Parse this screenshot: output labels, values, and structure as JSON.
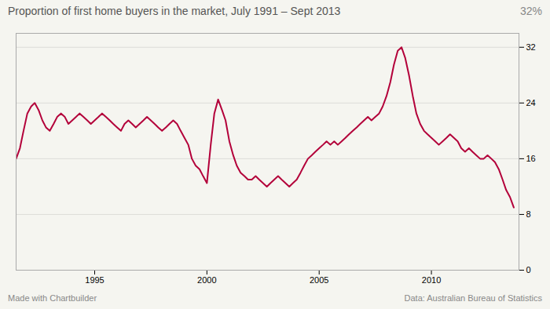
{
  "chart_data": {
    "type": "line",
    "title": "Proportion of first home buyers in the market, July 1991 – Sept 2013",
    "annotation": "32%",
    "footer": [
      "Made with Chartbuilder",
      "Data: Australian Bureau of Statistics"
    ],
    "color": "#B3003A",
    "grid": true,
    "xlim": [
      1991.5,
      2013.9
    ],
    "xticks": [
      1995,
      2000,
      2005,
      2010
    ],
    "ylim": [
      0,
      34
    ],
    "yticks": [
      0,
      8,
      16,
      24,
      32
    ],
    "x": [
      1991.5,
      1991.67,
      1991.83,
      1992.0,
      1992.17,
      1992.33,
      1992.5,
      1992.67,
      1992.83,
      1993.0,
      1993.17,
      1993.33,
      1993.5,
      1993.67,
      1993.83,
      1994.0,
      1994.17,
      1994.33,
      1994.5,
      1994.67,
      1994.83,
      1995.0,
      1995.17,
      1995.33,
      1995.5,
      1995.67,
      1995.83,
      1996.0,
      1996.17,
      1996.33,
      1996.5,
      1996.67,
      1996.83,
      1997.0,
      1997.17,
      1997.33,
      1997.5,
      1997.67,
      1997.83,
      1998.0,
      1998.17,
      1998.33,
      1998.5,
      1998.67,
      1998.83,
      1999.0,
      1999.17,
      1999.33,
      1999.5,
      1999.67,
      1999.83,
      2000.0,
      2000.17,
      2000.33,
      2000.5,
      2000.67,
      2000.83,
      2001.0,
      2001.17,
      2001.33,
      2001.5,
      2001.67,
      2001.83,
      2002.0,
      2002.17,
      2002.33,
      2002.5,
      2002.67,
      2002.83,
      2003.0,
      2003.17,
      2003.33,
      2003.5,
      2003.67,
      2003.83,
      2004.0,
      2004.17,
      2004.33,
      2004.5,
      2004.67,
      2004.83,
      2005.0,
      2005.17,
      2005.33,
      2005.5,
      2005.67,
      2005.83,
      2006.0,
      2006.17,
      2006.33,
      2006.5,
      2006.67,
      2006.83,
      2007.0,
      2007.17,
      2007.33,
      2007.5,
      2007.67,
      2007.83,
      2008.0,
      2008.17,
      2008.33,
      2008.5,
      2008.67,
      2008.83,
      2009.0,
      2009.17,
      2009.33,
      2009.5,
      2009.67,
      2009.83,
      2010.0,
      2010.17,
      2010.33,
      2010.5,
      2010.67,
      2010.83,
      2011.0,
      2011.17,
      2011.33,
      2011.5,
      2011.67,
      2011.83,
      2012.0,
      2012.17,
      2012.33,
      2012.5,
      2012.67,
      2012.83,
      2013.0,
      2013.17,
      2013.33,
      2013.5,
      2013.67
    ],
    "values": [
      16.0,
      17.5,
      20.0,
      22.5,
      23.5,
      24.0,
      23.0,
      21.5,
      20.5,
      20.0,
      21.0,
      22.0,
      22.5,
      22.0,
      21.0,
      21.5,
      22.0,
      22.5,
      22.0,
      21.5,
      21.0,
      21.5,
      22.0,
      22.5,
      22.0,
      21.5,
      21.0,
      20.5,
      20.0,
      21.0,
      21.5,
      21.0,
      20.5,
      21.0,
      21.5,
      22.0,
      21.5,
      21.0,
      20.5,
      20.0,
      20.5,
      21.0,
      21.5,
      21.0,
      20.0,
      19.0,
      18.0,
      16.0,
      15.0,
      14.5,
      13.5,
      12.5,
      18.0,
      22.5,
      24.5,
      23.0,
      21.5,
      18.5,
      16.5,
      15.0,
      14.0,
      13.5,
      13.0,
      13.0,
      13.5,
      13.0,
      12.5,
      12.0,
      12.5,
      13.0,
      13.5,
      13.0,
      12.5,
      12.0,
      12.5,
      13.0,
      14.0,
      15.0,
      16.0,
      16.5,
      17.0,
      17.5,
      18.0,
      18.5,
      18.0,
      18.5,
      18.0,
      18.5,
      19.0,
      19.5,
      20.0,
      20.5,
      21.0,
      21.5,
      22.0,
      21.5,
      22.0,
      22.5,
      23.5,
      25.0,
      27.0,
      29.5,
      31.5,
      32.0,
      30.5,
      28.0,
      25.0,
      22.5,
      21.0,
      20.0,
      19.5,
      19.0,
      18.5,
      18.0,
      18.5,
      19.0,
      19.5,
      19.0,
      18.5,
      17.5,
      17.0,
      17.5,
      17.0,
      16.5,
      16.0,
      16.0,
      16.5,
      16.0,
      15.5,
      14.5,
      13.0,
      11.5,
      10.5,
      9.0
    ]
  }
}
